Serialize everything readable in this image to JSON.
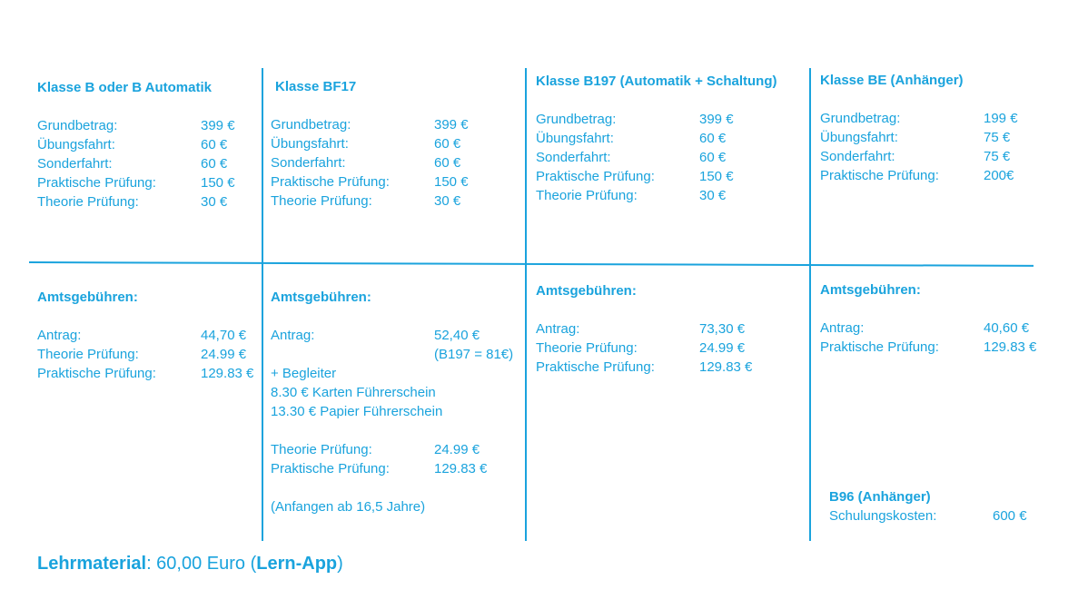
{
  "top": [
    {
      "title": "Klasse B oder B Automatik",
      "rows": [
        {
          "label": "Grundbetrag:",
          "value": "399 €"
        },
        {
          "label": "Übungsfahrt:",
          "value": "60 €"
        },
        {
          "label": "Sonderfahrt:",
          "value": "60 €"
        },
        {
          "label": "Praktische Prüfung:",
          "value": "150 €"
        },
        {
          "label": "Theorie Prüfung:",
          "value": "30 €"
        }
      ]
    },
    {
      "title": "Klasse BF17",
      "rows": [
        {
          "label": "Grundbetrag:",
          "value": "399 €"
        },
        {
          "label": "Übungsfahrt:",
          "value": "60 €"
        },
        {
          "label": "Sonderfahrt:",
          "value": "60 €"
        },
        {
          "label": "Praktische Prüfung:",
          "value": "150 €"
        },
        {
          "label": "Theorie Prüfung:",
          "value": "30 €"
        }
      ]
    },
    {
      "title": "Klasse B197 (Automatik + Schaltung)",
      "rows": [
        {
          "label": "Grundbetrag:",
          "value": "399 €"
        },
        {
          "label": "Übungsfahrt:",
          "value": "60 €"
        },
        {
          "label": "Sonderfahrt:",
          "value": "60 €"
        },
        {
          "label": "Praktische Prüfung:",
          "value": "150 €"
        },
        {
          "label": "Theorie Prüfung:",
          "value": "30 €"
        }
      ]
    },
    {
      "title": "Klasse BE (Anhänger)",
      "rows": [
        {
          "label": "Grundbetrag:",
          "value": "199 €"
        },
        {
          "label": "Übungsfahrt:",
          "value": "75 €"
        },
        {
          "label": "Sonderfahrt:",
          "value": "75 €"
        },
        {
          "label": "Praktische Prüfung:",
          "value": "200€"
        }
      ]
    }
  ],
  "bottom": [
    {
      "title": "Amtsgebühren:",
      "rows": [
        {
          "label": "Antrag:",
          "value": "44,70 €"
        },
        {
          "label": "Theorie Prüfung:",
          "value": "24.99 €"
        },
        {
          "label": "Praktische Prüfung:",
          "value": "129.83 €"
        }
      ]
    },
    {
      "title": "Amtsgebühren:",
      "antrag_label": "Antrag:",
      "antrag_value": "52,40 €",
      "antrag_note": "(B197 = 81€)",
      "extras": [
        "+ Begleiter",
        "8.30 € Karten Führerschein",
        "13.30 € Papier Führerschein"
      ],
      "rows": [
        {
          "label": "Theorie Prüfung:",
          "value": "24.99 €"
        },
        {
          "label": "Praktische Prüfung:",
          "value": "129.83 €"
        }
      ],
      "note": "(Anfangen ab 16,5  Jahre)"
    },
    {
      "title": "Amtsgebühren:",
      "rows": [
        {
          "label": "Antrag:",
          "value": "73,30 €"
        },
        {
          "label": "Theorie Prüfung:",
          "value": "24.99 €"
        },
        {
          "label": "Praktische Prüfung:",
          "value": "129.83 €"
        }
      ]
    },
    {
      "title": "Amtsgebühren:",
      "rows": [
        {
          "label": "Antrag:",
          "value": "40,60 €"
        },
        {
          "label": "Praktische Prüfung:",
          "value": "129.83 €"
        }
      ]
    }
  ],
  "b96": {
    "title": "B96 (Anhänger)",
    "label": "Schulungskosten:",
    "value": "600 €"
  },
  "footer": {
    "label": "Lehrmaterial",
    "text": ": 60,00 Euro (",
    "app": "Lern-App",
    "close": ")"
  },
  "colors": {
    "accent": "#1aa3dd",
    "background": "#ffffff"
  }
}
